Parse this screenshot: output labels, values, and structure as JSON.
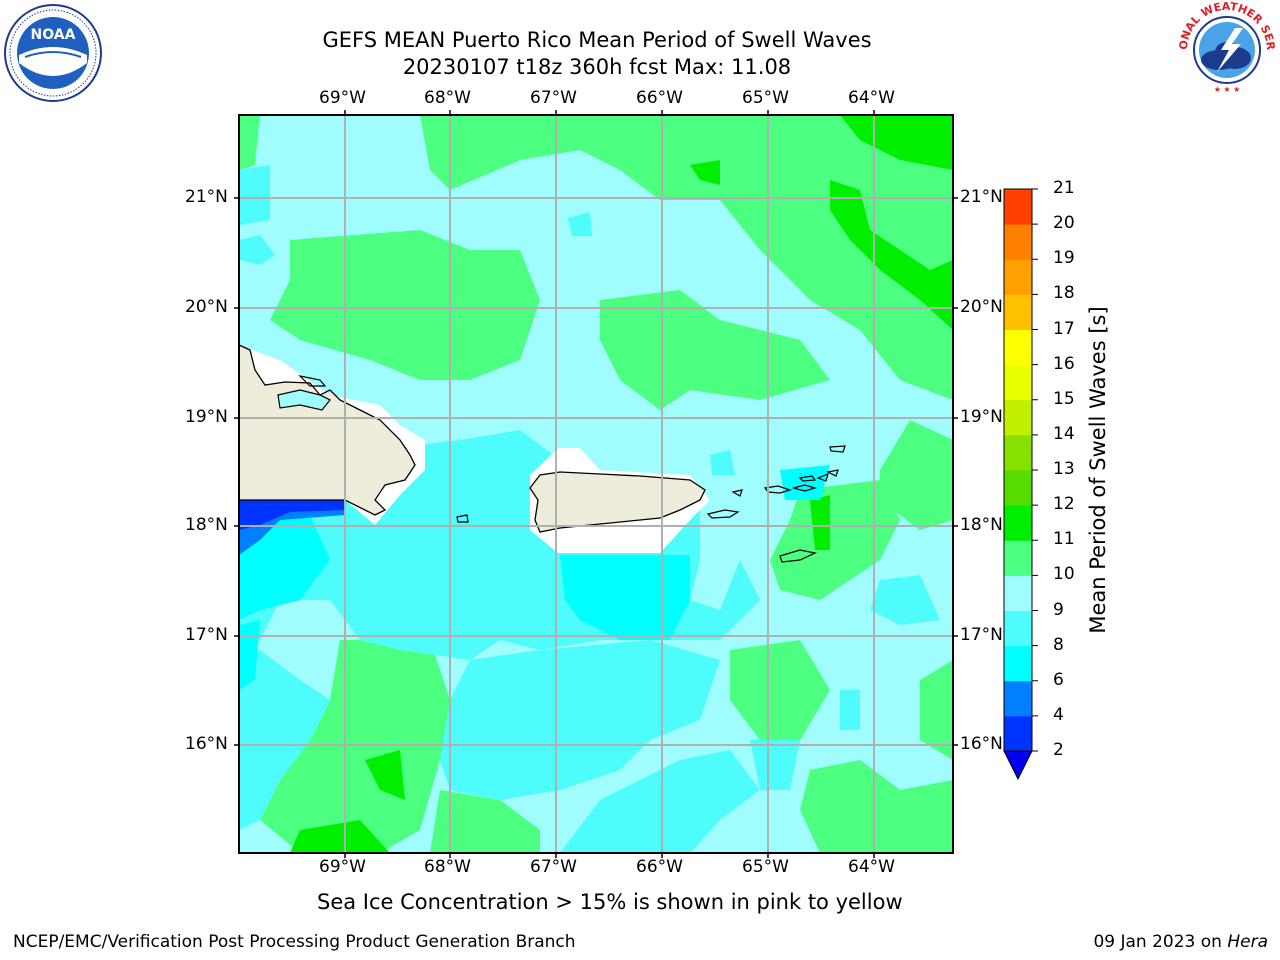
{
  "title": {
    "line1": "GEFS MEAN Puerto Rico Mean Period of Swell Waves",
    "line2": "20230107 t18z 360h fcst   Max: 11.08"
  },
  "logos": {
    "left": {
      "text": "NOAA",
      "ring_text": "NATIONAL OCEANIC AND ATMOSPHERIC ADMINISTRATION · U.S. DEPARTMENT OF COMMERCE"
    },
    "right": {
      "ring_text": "NATIONAL WEATHER SERVICE"
    }
  },
  "map": {
    "lon_labels": [
      "69°W",
      "68°W",
      "67°W",
      "66°W",
      "65°W",
      "64°W"
    ],
    "lat_labels": [
      "21°N",
      "20°N",
      "19°N",
      "18°N",
      "17°N",
      "16°N"
    ],
    "lon_range": [
      -70.0,
      -63.25
    ],
    "lat_range": [
      15.0,
      21.75
    ],
    "land_color": "#eeecdb",
    "grid": true
  },
  "colorbar": {
    "label": "Mean Period of Swell Waves [s]",
    "levels": [
      "2",
      "4",
      "6",
      "8",
      "9",
      "10",
      "11",
      "12",
      "13",
      "14",
      "15",
      "16",
      "17",
      "18",
      "19",
      "20",
      "21"
    ],
    "colors": [
      "#0033ff",
      "#0080ff",
      "#00ffff",
      "#4ffcfc",
      "#9ffdfd",
      "#4dff80",
      "#00ef00",
      "#55dd00",
      "#88e000",
      "#c0f000",
      "#e7ff00",
      "#ffff00",
      "#ffc000",
      "#ffa000",
      "#ff8000",
      "#ff4000",
      "#ff2000",
      "#ff0000"
    ],
    "underflow_color": "#0000ee"
  },
  "annotation": "Sea Ice Concentration > 15% is shown in pink to yellow",
  "footer": {
    "left": "NCEP/EMC/Verification Post Processing Product Generation Branch",
    "right_date": "09 Jan 2023 on ",
    "right_host": "Hera"
  }
}
